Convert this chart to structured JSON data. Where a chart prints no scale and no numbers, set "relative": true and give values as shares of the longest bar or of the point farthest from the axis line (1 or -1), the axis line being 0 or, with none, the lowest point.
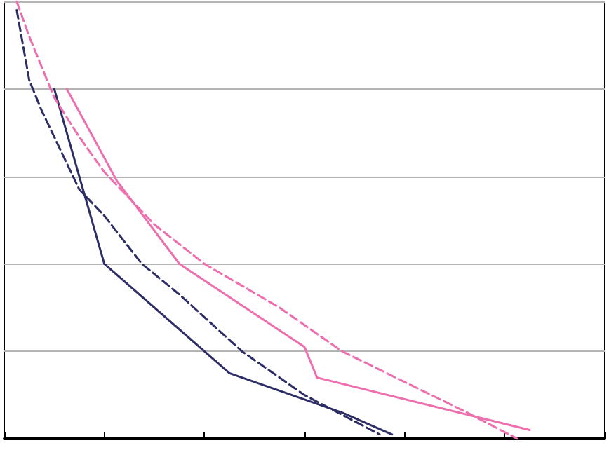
{
  "chart_data": {
    "type": "line",
    "relative": true,
    "grid": "y",
    "categories": [
      null,
      null,
      null,
      null,
      null,
      null,
      null,
      null,
      null,
      null,
      null,
      null,
      null,
      null,
      null,
      null,
      null,
      null,
      null,
      null,
      null,
      null,
      null,
      null,
      null,
      null,
      null,
      null,
      null,
      null,
      null,
      null,
      null,
      null,
      null,
      null,
      null,
      null,
      null,
      null,
      null,
      null,
      null,
      null,
      null,
      null,
      null,
      null,
      null
    ],
    "series": [
      {
        "color": "#2e2e66",
        "line_style": "solid",
        "values": [
          null,
          null,
          null,
          null,
          0.8,
          null,
          null,
          null,
          0.4,
          null,
          null,
          null,
          null,
          null,
          null,
          null,
          null,
          null,
          0.15,
          null,
          null,
          null,
          null,
          null,
          null,
          null,
          null,
          0.06,
          null,
          null,
          null,
          0.01,
          null,
          null,
          null,
          null,
          null,
          null,
          null,
          null,
          null,
          null,
          null,
          null,
          null,
          null,
          null,
          null,
          null
        ]
      },
      {
        "color": "#2e2e66",
        "line_style": "dashed",
        "values": [
          null,
          0.98,
          0.82,
          0.75,
          0.69,
          null,
          0.57,
          null,
          0.51,
          null,
          null,
          0.4,
          null,
          null,
          0.33,
          null,
          null,
          null,
          null,
          0.2,
          null,
          null,
          null,
          null,
          0.1,
          null,
          null,
          null,
          null,
          null,
          0.01,
          null,
          null,
          null,
          null,
          null,
          null,
          null,
          null,
          null,
          null,
          null,
          null,
          null,
          null,
          null,
          null,
          null,
          null
        ]
      },
      {
        "color": "#ee6fae",
        "line_style": "solid",
        "values": [
          null,
          null,
          null,
          null,
          null,
          0.8,
          null,
          null,
          null,
          0.59,
          null,
          null,
          null,
          null,
          0.4,
          null,
          null,
          null,
          null,
          null,
          null,
          null,
          null,
          null,
          0.21,
          0.14,
          null,
          null,
          null,
          null,
          null,
          null,
          null,
          null,
          null,
          null,
          null,
          null,
          null,
          null,
          null,
          null,
          0.02,
          null,
          null,
          null,
          null,
          null,
          null
        ]
      },
      {
        "color": "#ee6fae",
        "line_style": "dashed",
        "values": [
          null,
          1,
          0.92,
          null,
          0.78,
          null,
          0.69,
          null,
          0.61,
          null,
          null,
          null,
          0.49,
          null,
          null,
          null,
          0.4,
          null,
          null,
          null,
          null,
          null,
          0.3,
          null,
          null,
          null,
          null,
          0.2,
          null,
          null,
          null,
          null,
          0.13,
          null,
          null,
          null,
          null,
          0.06,
          null,
          null,
          null,
          0,
          null,
          null,
          null,
          null,
          null,
          null,
          null
        ]
      }
    ]
  }
}
